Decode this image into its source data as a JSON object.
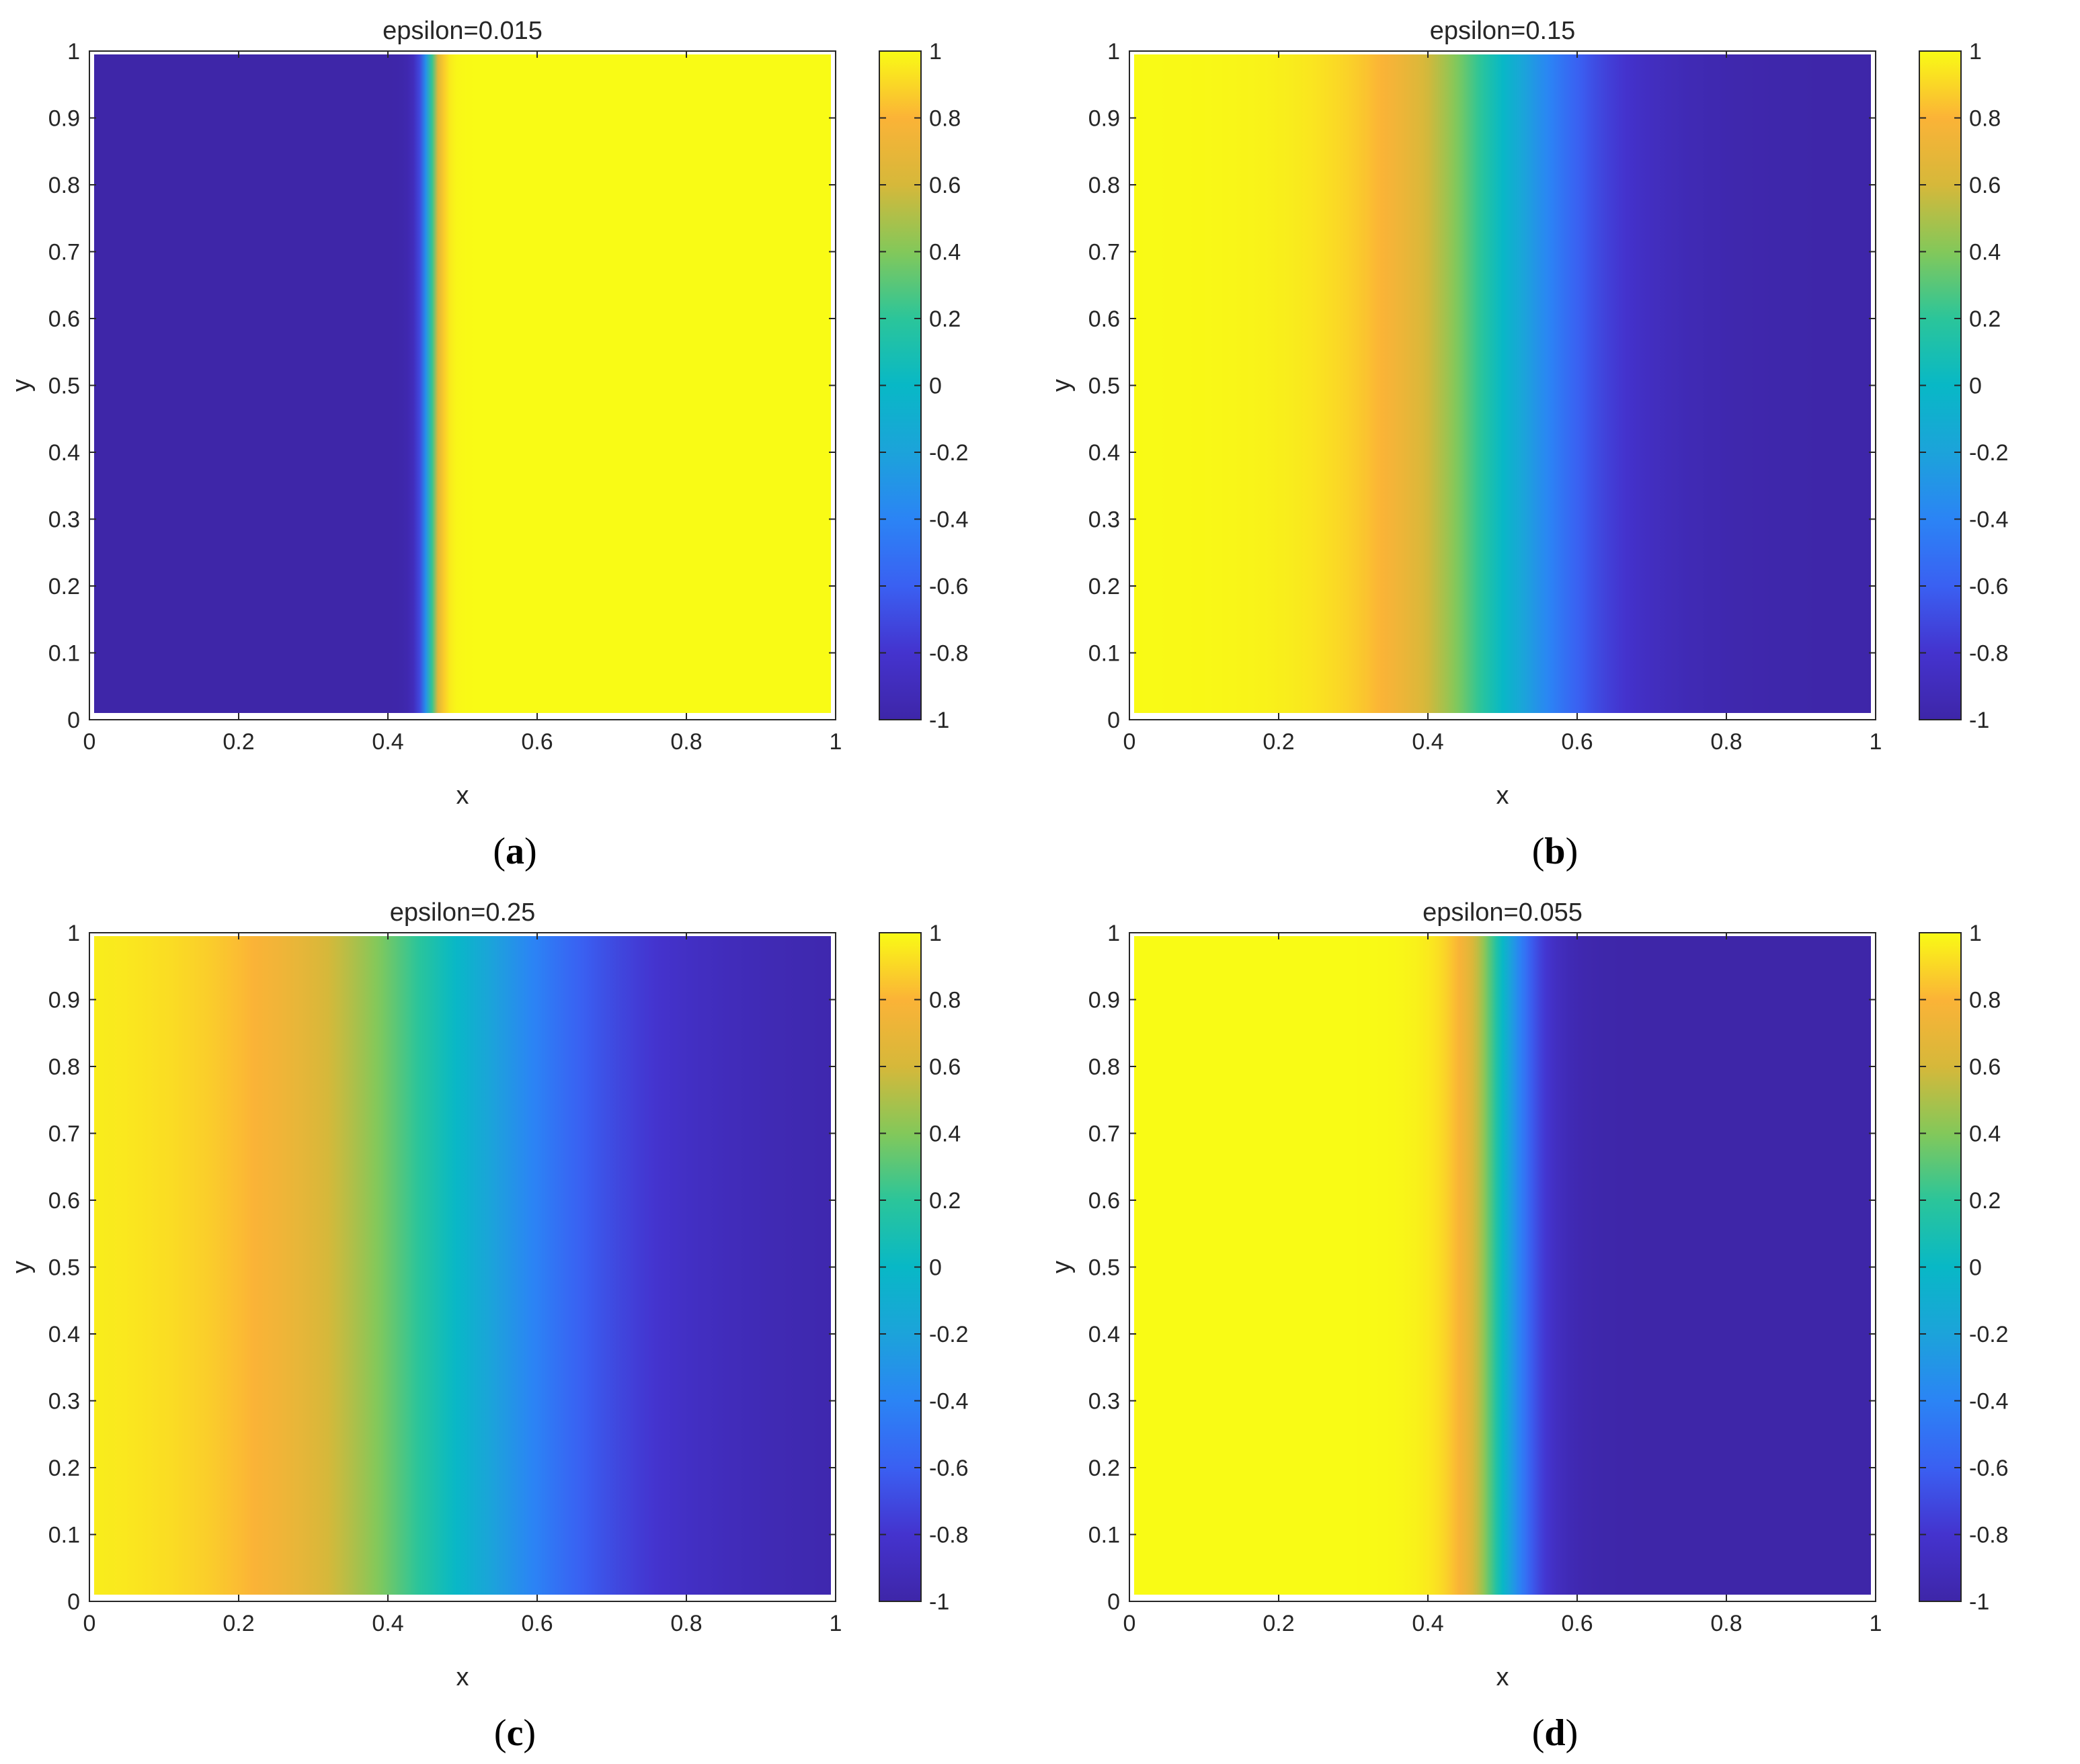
{
  "chart_data": [
    {
      "type": "heatmap",
      "panel_label": "a",
      "title": "epsilon=0.015",
      "xlabel": "x",
      "ylabel": "y",
      "xlim": [
        0,
        1
      ],
      "ylim": [
        0,
        1
      ],
      "clim": [
        -1,
        1
      ],
      "x_ticks": [
        "0",
        "0.2",
        "0.4",
        "0.6",
        "0.8",
        "1"
      ],
      "y_ticks": [
        "0",
        "0.1",
        "0.2",
        "0.3",
        "0.4",
        "0.5",
        "0.6",
        "0.7",
        "0.8",
        "0.9",
        "1"
      ],
      "colorbar_ticks": [
        "-1",
        "-0.8",
        "-0.6",
        "-0.4",
        "-0.2",
        "0",
        "0.2",
        "0.4",
        "0.6",
        "0.8",
        "1"
      ],
      "colormap": "parula",
      "field": {
        "varies_along": "x",
        "interface_x": 0.455,
        "epsilon": 0.015,
        "left_value": -1,
        "right_value": 1
      }
    },
    {
      "type": "heatmap",
      "panel_label": "b",
      "title": "epsilon=0.15",
      "xlabel": "x",
      "ylabel": "y",
      "xlim": [
        0,
        1
      ],
      "ylim": [
        0,
        1
      ],
      "clim": [
        -1,
        1
      ],
      "x_ticks": [
        "0",
        "0.2",
        "0.4",
        "0.6",
        "0.8",
        "1"
      ],
      "y_ticks": [
        "0",
        "0.1",
        "0.2",
        "0.3",
        "0.4",
        "0.5",
        "0.6",
        "0.7",
        "0.8",
        "0.9",
        "1"
      ],
      "colorbar_ticks": [
        "-1",
        "-0.8",
        "-0.6",
        "-0.4",
        "-0.2",
        "0",
        "0.2",
        "0.4",
        "0.6",
        "0.8",
        "1"
      ],
      "colormap": "parula",
      "field": {
        "varies_along": "x",
        "interface_x": 0.5,
        "epsilon": 0.15,
        "left_value": 1,
        "right_value": -1
      }
    },
    {
      "type": "heatmap",
      "panel_label": "c",
      "title": "epsilon=0.25",
      "xlabel": "x",
      "ylabel": "y",
      "xlim": [
        0,
        1
      ],
      "ylim": [
        0,
        1
      ],
      "clim": [
        -1,
        1
      ],
      "x_ticks": [
        "0",
        "0.2",
        "0.4",
        "0.6",
        "0.8",
        "1"
      ],
      "y_ticks": [
        "0",
        "0.1",
        "0.2",
        "0.3",
        "0.4",
        "0.5",
        "0.6",
        "0.7",
        "0.8",
        "0.9",
        "1"
      ],
      "colorbar_ticks": [
        "-1",
        "-0.8",
        "-0.6",
        "-0.4",
        "-0.2",
        "0",
        "0.2",
        "0.4",
        "0.6",
        "0.8",
        "1"
      ],
      "colormap": "parula",
      "field": {
        "varies_along": "x",
        "interface_x": 0.49,
        "epsilon": 0.25,
        "left_value": 1,
        "right_value": -1
      }
    },
    {
      "type": "heatmap",
      "panel_label": "d",
      "title": "epsilon=0.055",
      "xlabel": "x",
      "ylabel": "y",
      "xlim": [
        0,
        1
      ],
      "ylim": [
        0,
        1
      ],
      "clim": [
        -1,
        1
      ],
      "x_ticks": [
        "0",
        "0.2",
        "0.4",
        "0.6",
        "0.8",
        "1"
      ],
      "y_ticks": [
        "0",
        "0.1",
        "0.2",
        "0.3",
        "0.4",
        "0.5",
        "0.6",
        "0.7",
        "0.8",
        "0.9",
        "1"
      ],
      "colorbar_ticks": [
        "-1",
        "-0.8",
        "-0.6",
        "-0.4",
        "-0.2",
        "0",
        "0.2",
        "0.4",
        "0.6",
        "0.8",
        "1"
      ],
      "colormap": "parula",
      "field": {
        "varies_along": "x",
        "interface_x": 0.5,
        "epsilon": 0.055,
        "left_value": 1,
        "right_value": -1
      }
    }
  ]
}
